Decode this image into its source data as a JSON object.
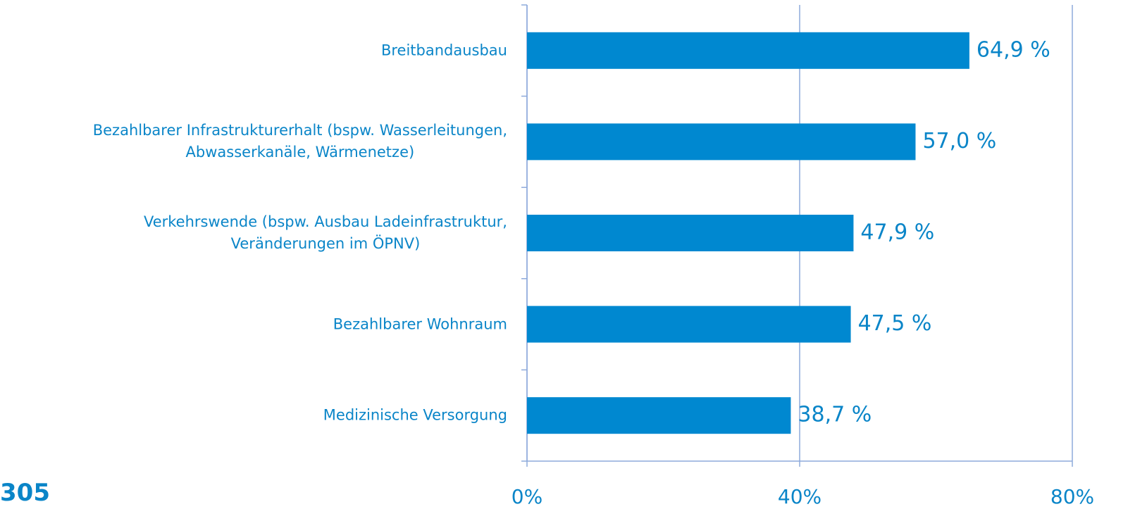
{
  "chart_data": {
    "type": "barh",
    "categories": [
      "Breitbandausbau",
      "Bezahlbarer Infrastrukturerhalt (bspw. Wasserleitungen,\nAbwasserkanäle, Wärmenetze)",
      "Verkehrswende (bspw. Ausbau Ladeinfrastruktur,\nVeränderungen im ÖPNV)",
      "Bezahlbarer Wohnraum",
      "Medizinische Versorgung"
    ],
    "values": [
      64.9,
      57.0,
      47.9,
      47.5,
      38.7
    ],
    "value_labels": [
      "64,9 %",
      "57,0 %",
      "47,9 %",
      "47,5 %",
      "38,7 %"
    ],
    "color": "#0088d0",
    "xlim": [
      0,
      80
    ],
    "xticks": [
      {
        "value": 0,
        "label": "0%"
      },
      {
        "value": 40,
        "label": "40%"
      },
      {
        "value": 80,
        "label": "80%"
      }
    ],
    "grid": true,
    "annotation": "305"
  }
}
